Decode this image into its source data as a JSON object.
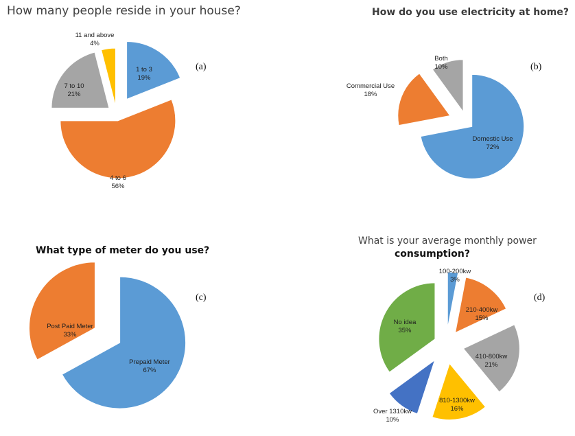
{
  "chart_data": [
    {
      "id": "a",
      "type": "pie",
      "title": "How many people reside in your house?",
      "panel_label": "(a)",
      "slices": [
        {
          "label": "1 to 3",
          "value": 19,
          "pct": "19%",
          "color": "#5b9bd5"
        },
        {
          "label": "4 to 6",
          "value": 56,
          "pct": "56%",
          "color": "#ed7d31"
        },
        {
          "label": "7 to 10",
          "value": 21,
          "pct": "21%",
          "color": "#a5a5a5"
        },
        {
          "label": "11 and above",
          "value": 4,
          "pct": "4%",
          "color": "#ffc000"
        }
      ]
    },
    {
      "id": "b",
      "type": "pie",
      "title": "How do you use electricity at home?",
      "panel_label": "(b)",
      "slices": [
        {
          "label": "Domestic Use",
          "value": 72,
          "pct": "72%",
          "color": "#5b9bd5"
        },
        {
          "label": "Commercial Use",
          "value": 18,
          "pct": "18%",
          "color": "#ed7d31"
        },
        {
          "label": "Both",
          "value": 10,
          "pct": "10%",
          "color": "#a5a5a5"
        }
      ]
    },
    {
      "id": "c",
      "type": "pie",
      "title": "What type of meter do you use?",
      "panel_label": "(c)",
      "slices": [
        {
          "label": "Prepaid Meter",
          "value": 67,
          "pct": "67%",
          "color": "#5b9bd5"
        },
        {
          "label": "Post Paid Meter",
          "value": 33,
          "pct": "33%",
          "color": "#ed7d31"
        }
      ]
    },
    {
      "id": "d",
      "type": "pie",
      "title_line1": "What is your average monthly power",
      "title_line2": "consumption?",
      "panel_label": "(d)",
      "slices": [
        {
          "label": "100-200kw",
          "value": 3,
          "pct": "3%",
          "color": "#5b9bd5"
        },
        {
          "label": "210-400kw",
          "value": 15,
          "pct": "15%",
          "color": "#ed7d31"
        },
        {
          "label": "410-800kw",
          "value": 21,
          "pct": "21%",
          "color": "#a5a5a5"
        },
        {
          "label": "810-1300kw",
          "value": 16,
          "pct": "16%",
          "color": "#ffc000"
        },
        {
          "label": "Over 1310kw",
          "value": 10,
          "pct": "10%",
          "color": "#4472c4"
        },
        {
          "label": "No idea",
          "value": 35,
          "pct": "35%",
          "color": "#70ad47"
        }
      ]
    }
  ]
}
